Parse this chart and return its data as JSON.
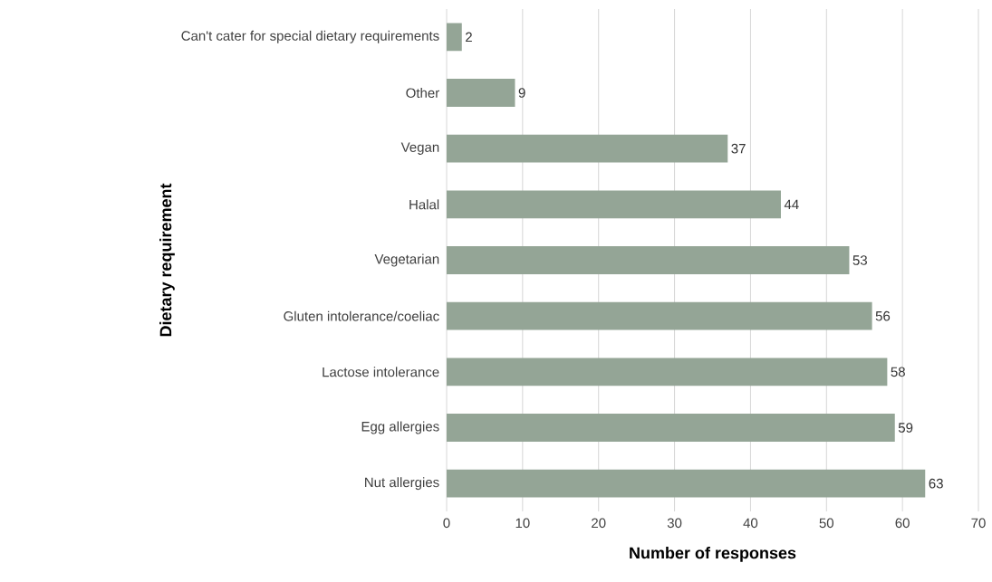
{
  "chart_data": {
    "type": "bar",
    "orientation": "horizontal",
    "xlabel": "Number of responses",
    "ylabel": "Dietary requirement",
    "categories": [
      "Can't cater for special dietary requirements",
      "Other",
      "Vegan",
      "Halal",
      "Vegetarian",
      "Gluten intolerance/coeliac",
      "Lactose intolerance",
      "Egg allergies",
      "Nut allergies"
    ],
    "values": [
      2,
      9,
      37,
      44,
      53,
      56,
      58,
      59,
      63
    ],
    "color": "#94a596",
    "xlim": [
      0,
      70
    ],
    "xticks": [
      0,
      10,
      20,
      30,
      40,
      50,
      60,
      70
    ],
    "grid": "x",
    "data_labels": true
  }
}
